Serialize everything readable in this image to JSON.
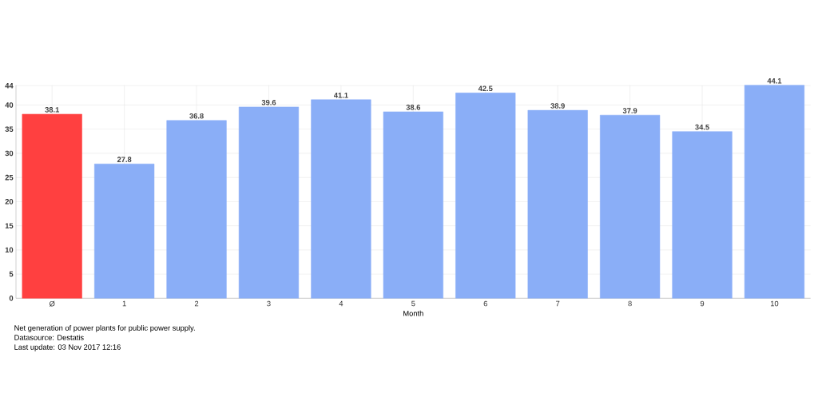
{
  "chart_data": {
    "type": "bar",
    "xlabel": "Month",
    "categories": [
      "Ø",
      "1",
      "2",
      "3",
      "4",
      "5",
      "6",
      "7",
      "8",
      "9",
      "10"
    ],
    "values": [
      38.1,
      27.8,
      36.8,
      39.6,
      41.1,
      38.6,
      42.5,
      38.9,
      37.9,
      34.5,
      44.1
    ],
    "colors": [
      "#ff4040",
      "#8aaef7",
      "#8aaef7",
      "#8aaef7",
      "#8aaef7",
      "#8aaef7",
      "#8aaef7",
      "#8aaef7",
      "#8aaef7",
      "#8aaef7",
      "#8aaef7"
    ],
    "ylim": [
      0,
      44.1
    ],
    "yticks": [
      0,
      5,
      10,
      15,
      20,
      25,
      30,
      35,
      40,
      44
    ],
    "grid": true,
    "data_labels": true,
    "annotations": [
      "Net generation of power plants for public power supply.",
      "Datasource: Destatis",
      "Last update: 03 Nov 2017 12:16"
    ]
  }
}
